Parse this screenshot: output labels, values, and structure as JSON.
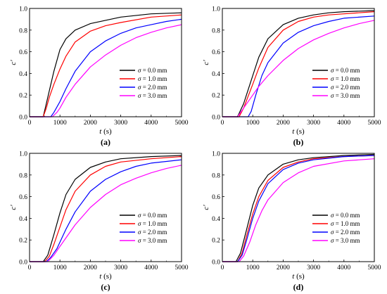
{
  "series_colors": {
    "0.0": "#000000",
    "1.0": "#ff0000",
    "2.0": "#0000ff",
    "3.0": "#ff00ff"
  },
  "legend_items": [
    "σ = 0.0 mm",
    "σ = 1.0 mm",
    "σ = 2.0 mm",
    "σ = 3.0 mm"
  ],
  "xlabel": "t (s)",
  "ylabel": "c'",
  "x_ticks": [
    "0",
    "1000",
    "2000",
    "3000",
    "4000",
    "5000"
  ],
  "y_ticks": [
    "0.0",
    "0.2",
    "0.4",
    "0.6",
    "0.8",
    "1.0"
  ],
  "panel_labels": [
    "(a)",
    "(b)",
    "(c)",
    "(d)"
  ],
  "chart_data": [
    {
      "type": "line",
      "panel": "(a)",
      "xlabel": "t (s)",
      "ylabel": "c'",
      "xlim": [
        0,
        5000
      ],
      "ylim": [
        0,
        1.0
      ],
      "legend_placement": "bottom-right",
      "series": [
        {
          "name": "σ = 0.0 mm",
          "x": [
            0,
            450,
            550,
            650,
            800,
            1000,
            1200,
            1500,
            2000,
            2500,
            3000,
            4000,
            5000
          ],
          "y": [
            0,
            0,
            0.12,
            0.24,
            0.42,
            0.62,
            0.72,
            0.8,
            0.86,
            0.89,
            0.92,
            0.95,
            0.96
          ]
        },
        {
          "name": "σ = 1.0 mm",
          "x": [
            0,
            450,
            550,
            650,
            800,
            1000,
            1200,
            1500,
            2000,
            2500,
            3000,
            4000,
            5000
          ],
          "y": [
            0,
            0,
            0.08,
            0.18,
            0.3,
            0.44,
            0.56,
            0.69,
            0.79,
            0.84,
            0.87,
            0.92,
            0.94
          ]
        },
        {
          "name": "σ = 2.0 mm",
          "x": [
            0,
            700,
            800,
            1000,
            1200,
            1500,
            2000,
            2500,
            3000,
            3500,
            4000,
            4500,
            5000
          ],
          "y": [
            0,
            0,
            0.04,
            0.14,
            0.26,
            0.42,
            0.6,
            0.7,
            0.77,
            0.82,
            0.85,
            0.88,
            0.9
          ]
        },
        {
          "name": "σ = 3.0 mm",
          "x": [
            0,
            750,
            900,
            1000,
            1200,
            1500,
            2000,
            2500,
            3000,
            3500,
            4000,
            4500,
            5000
          ],
          "y": [
            0,
            0,
            0.04,
            0.08,
            0.18,
            0.3,
            0.46,
            0.57,
            0.66,
            0.73,
            0.78,
            0.82,
            0.85
          ]
        }
      ]
    },
    {
      "type": "line",
      "panel": "(b)",
      "xlabel": "t (s)",
      "ylabel": "c'",
      "xlim": [
        0,
        5000
      ],
      "ylim": [
        0,
        1.0
      ],
      "legend_placement": "bottom-right",
      "series": [
        {
          "name": "σ = 0.0 mm",
          "x": [
            0,
            500,
            700,
            1000,
            1200,
            1500,
            2000,
            2500,
            3000,
            3500,
            4000,
            5000
          ],
          "y": [
            0,
            0,
            0.12,
            0.38,
            0.55,
            0.72,
            0.85,
            0.91,
            0.94,
            0.96,
            0.97,
            0.98
          ]
        },
        {
          "name": "σ = 1.0 mm",
          "x": [
            0,
            550,
            700,
            1000,
            1200,
            1500,
            2000,
            2500,
            3000,
            3500,
            4000,
            5000
          ],
          "y": [
            0,
            0,
            0.08,
            0.3,
            0.45,
            0.64,
            0.8,
            0.88,
            0.92,
            0.94,
            0.95,
            0.97
          ]
        },
        {
          "name": "σ = 2.0 mm",
          "x": [
            0,
            850,
            950,
            1100,
            1300,
            1500,
            2000,
            2500,
            3000,
            3500,
            4000,
            5000
          ],
          "y": [
            0,
            0,
            0.05,
            0.2,
            0.38,
            0.5,
            0.68,
            0.78,
            0.84,
            0.88,
            0.91,
            0.93
          ]
        },
        {
          "name": "σ = 3.0 mm",
          "x": [
            0,
            500,
            700,
            1000,
            1200,
            1500,
            2000,
            2500,
            3000,
            3500,
            4000,
            4500,
            5000
          ],
          "y": [
            0,
            0,
            0.08,
            0.2,
            0.28,
            0.38,
            0.52,
            0.63,
            0.71,
            0.77,
            0.82,
            0.86,
            0.89
          ]
        }
      ]
    },
    {
      "type": "line",
      "panel": "(c)",
      "xlabel": "t (s)",
      "ylabel": "c'",
      "xlim": [
        0,
        5000
      ],
      "ylim": [
        0,
        1.0
      ],
      "legend_placement": "bottom-right",
      "series": [
        {
          "name": "σ = 0.0 mm",
          "x": [
            0,
            450,
            600,
            800,
            1000,
            1200,
            1500,
            2000,
            2500,
            3000,
            4000,
            5000
          ],
          "y": [
            0,
            0,
            0.06,
            0.25,
            0.45,
            0.62,
            0.76,
            0.87,
            0.92,
            0.95,
            0.97,
            0.98
          ]
        },
        {
          "name": "σ = 1.0 mm",
          "x": [
            0,
            500,
            650,
            800,
            1000,
            1200,
            1500,
            2000,
            2500,
            3000,
            4000,
            5000
          ],
          "y": [
            0,
            0,
            0.05,
            0.16,
            0.32,
            0.48,
            0.65,
            0.8,
            0.88,
            0.92,
            0.95,
            0.97
          ]
        },
        {
          "name": "σ = 2.0 mm",
          "x": [
            0,
            550,
            700,
            900,
            1200,
            1500,
            2000,
            2500,
            3000,
            3500,
            4000,
            5000
          ],
          "y": [
            0,
            0,
            0.04,
            0.12,
            0.3,
            0.46,
            0.65,
            0.76,
            0.83,
            0.88,
            0.91,
            0.94
          ]
        },
        {
          "name": "σ = 3.0 mm",
          "x": [
            0,
            600,
            800,
            1000,
            1200,
            1500,
            2000,
            2500,
            3000,
            3500,
            4000,
            4500,
            5000
          ],
          "y": [
            0,
            0,
            0.06,
            0.14,
            0.22,
            0.34,
            0.5,
            0.62,
            0.71,
            0.77,
            0.82,
            0.86,
            0.89
          ]
        }
      ]
    },
    {
      "type": "line",
      "panel": "(d)",
      "xlabel": "t (s)",
      "ylabel": "c'",
      "xlim": [
        0,
        5000
      ],
      "ylim": [
        0,
        1.0
      ],
      "legend_placement": "bottom-right",
      "series": [
        {
          "name": "σ = 0.0 mm",
          "x": [
            0,
            450,
            600,
            800,
            1000,
            1200,
            1500,
            2000,
            2500,
            3000,
            4000,
            5000
          ],
          "y": [
            0,
            0,
            0.08,
            0.3,
            0.52,
            0.68,
            0.8,
            0.9,
            0.94,
            0.96,
            0.98,
            0.99
          ]
        },
        {
          "name": "σ = 1.0 mm",
          "x": [
            0,
            500,
            650,
            800,
            1000,
            1200,
            1500,
            2000,
            2500,
            3000,
            4000,
            5000
          ],
          "y": [
            0,
            0,
            0.08,
            0.24,
            0.44,
            0.6,
            0.75,
            0.87,
            0.92,
            0.95,
            0.97,
            0.98
          ]
        },
        {
          "name": "σ = 2.0 mm",
          "x": [
            0,
            500,
            650,
            800,
            1000,
            1200,
            1500,
            2000,
            2500,
            3000,
            4000,
            5000
          ],
          "y": [
            0,
            0,
            0.06,
            0.2,
            0.4,
            0.56,
            0.72,
            0.85,
            0.91,
            0.94,
            0.97,
            0.98
          ]
        },
        {
          "name": "σ = 3.0 mm",
          "x": [
            0,
            550,
            700,
            900,
            1100,
            1300,
            1500,
            2000,
            2500,
            3000,
            4000,
            5000
          ],
          "y": [
            0,
            0,
            0.05,
            0.18,
            0.34,
            0.47,
            0.57,
            0.73,
            0.82,
            0.88,
            0.93,
            0.95
          ]
        }
      ]
    }
  ]
}
